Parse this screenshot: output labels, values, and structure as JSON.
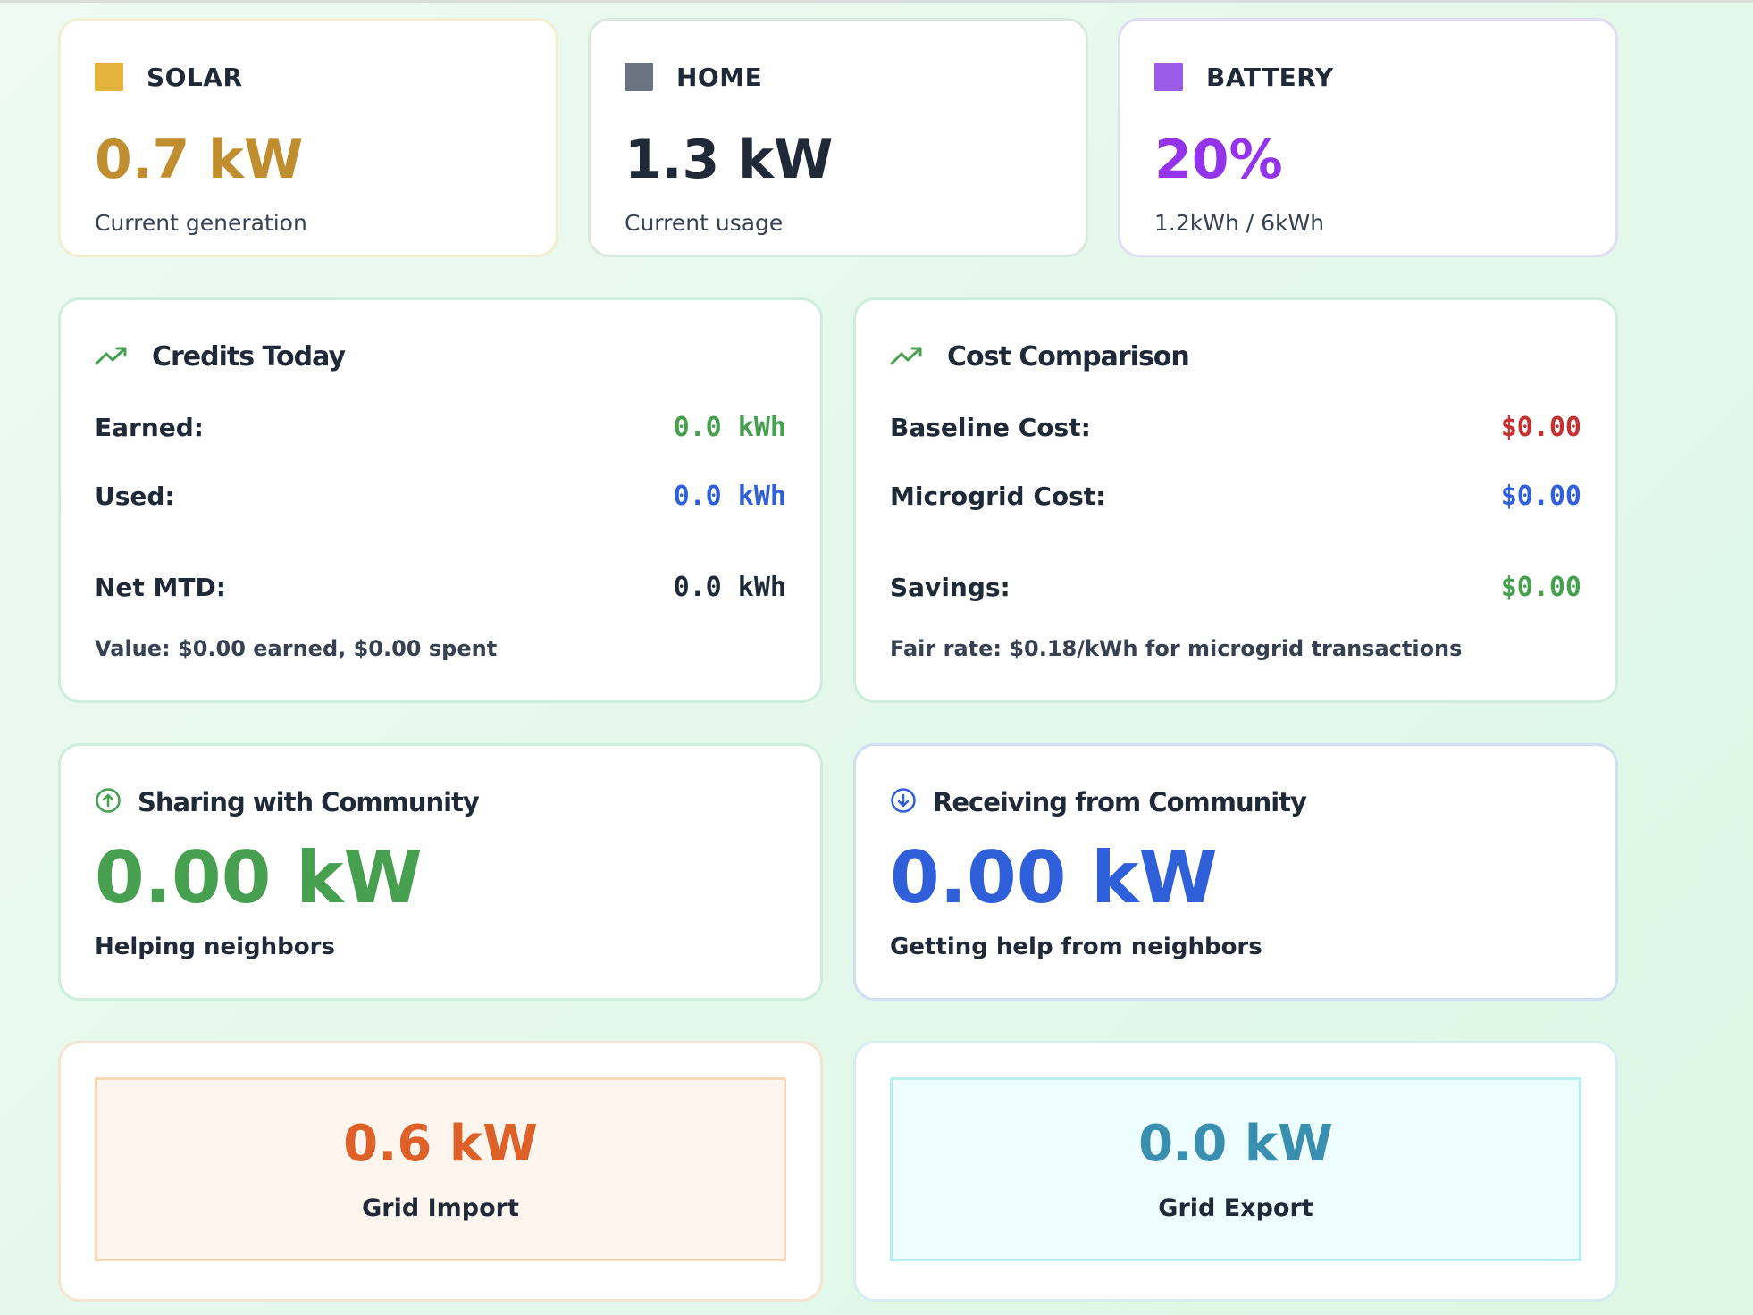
{
  "colors": {
    "solar": "#e3b33c",
    "solar_text": "#c18e2f",
    "home": "#6b7280",
    "home_text": "#1f2937",
    "battery": "#9b5de5",
    "battery_text": "#9333ea",
    "green": "#46a04f",
    "blue": "#2f5fd9",
    "red": "#c53030",
    "orange": "#dd6128",
    "teal": "#3a8fb0"
  },
  "solar": {
    "label": "SOLAR",
    "value": "0.7 kW",
    "subtitle": "Current generation"
  },
  "home": {
    "label": "HOME",
    "value": "1.3 kW",
    "subtitle": "Current usage"
  },
  "battery": {
    "label": "BATTERY",
    "value": "20%",
    "subtitle": "1.2kWh / 6kWh"
  },
  "credits": {
    "title": "Credits Today",
    "icon": "trending-up-icon",
    "earned_label": "Earned:",
    "earned_value": "0.0 kWh",
    "used_label": "Used:",
    "used_value": "0.0 kWh",
    "net_label": "Net MTD:",
    "net_value": "0.0 kWh",
    "footer": "Value: $0.00 earned, $0.00 spent"
  },
  "cost": {
    "title": "Cost Comparison",
    "icon": "trending-up-icon",
    "baseline_label": "Baseline Cost:",
    "baseline_value": "$0.00",
    "microgrid_label": "Microgrid Cost:",
    "microgrid_value": "$0.00",
    "savings_label": "Savings:",
    "savings_value": "$0.00",
    "footer": "Fair rate: $0.18/kWh for microgrid transactions"
  },
  "sharing": {
    "title": "Sharing with Community",
    "icon": "arrow-up-circle-icon",
    "value": "0.00 kW",
    "caption": "Helping neighbors"
  },
  "receiving": {
    "title": "Receiving from Community",
    "icon": "arrow-down-circle-icon",
    "value": "0.00 kW",
    "caption": "Getting help from neighbors"
  },
  "grid_import": {
    "value": "0.6 kW",
    "label": "Grid Import"
  },
  "grid_export": {
    "value": "0.0 kW",
    "label": "Grid Export"
  }
}
